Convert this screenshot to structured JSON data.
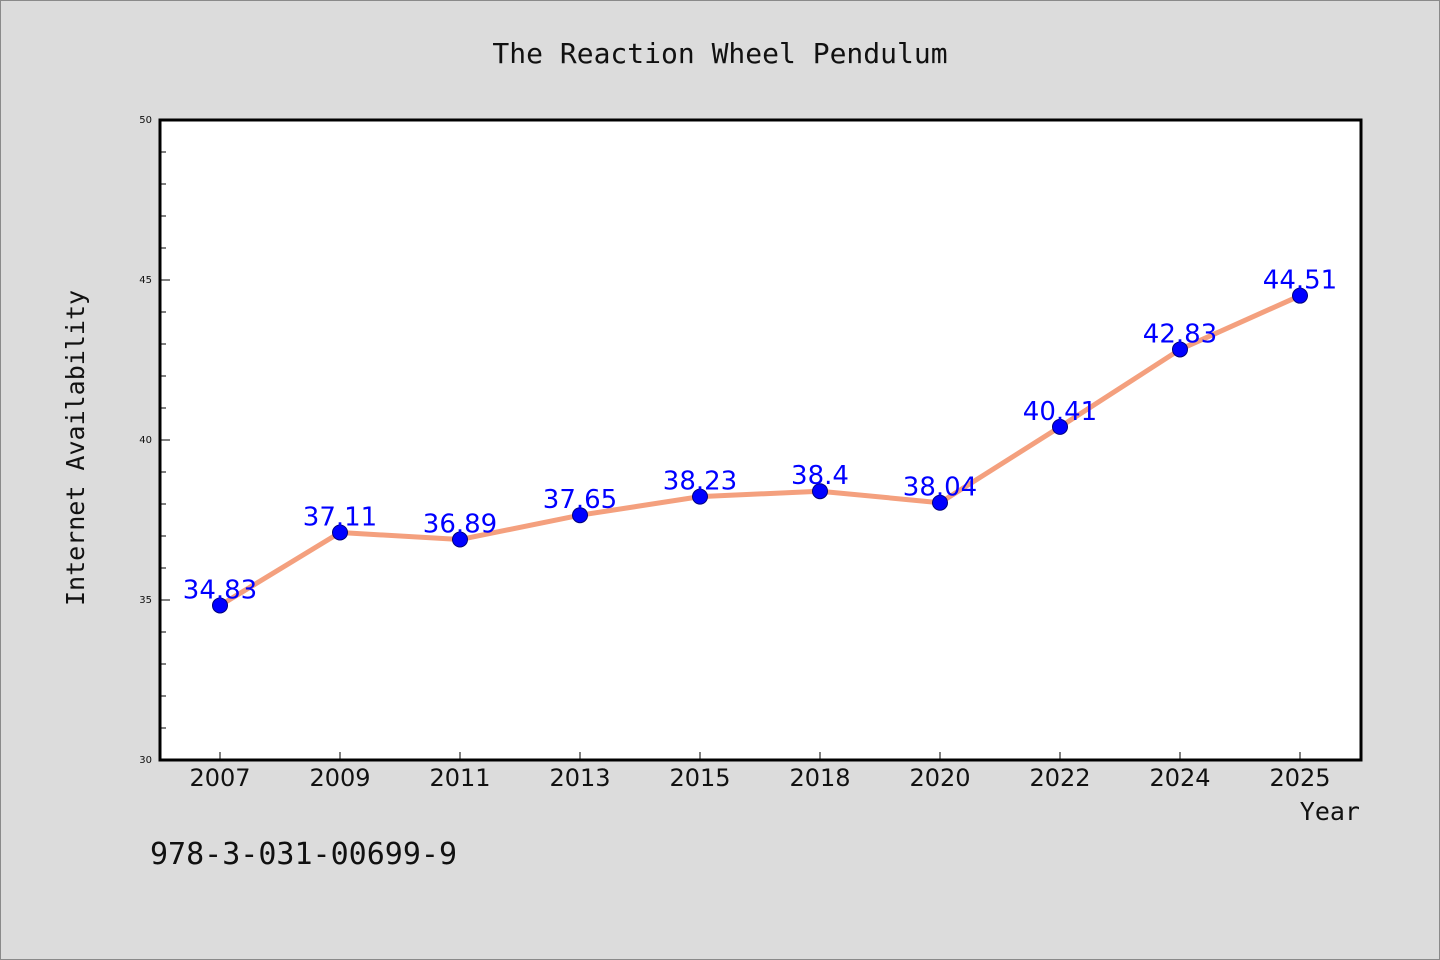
{
  "chart_data": {
    "type": "line",
    "title": "The Reaction Wheel Pendulum",
    "xlabel": "Year",
    "ylabel": "Internet Availability",
    "categories": [
      "2007",
      "2009",
      "2011",
      "2013",
      "2015",
      "2018",
      "2020",
      "2022",
      "2024",
      "2025"
    ],
    "series": [
      {
        "values": [
          34.83,
          37.11,
          36.89,
          37.65,
          38.23,
          38.4,
          38.04,
          40.41,
          42.83,
          44.51
        ],
        "data_labels": [
          "34.83",
          "37.11",
          "36.89",
          "37.65",
          "38.23",
          "38.4",
          "38.04",
          "40.41",
          "42.83",
          "44.51"
        ]
      }
    ],
    "ylim": [
      30,
      50
    ],
    "yticks": [
      "30",
      "35",
      "40",
      "45",
      "50"
    ],
    "grid": false,
    "colors": {
      "line": "#f4a07e",
      "marker": "#0000ff",
      "data_label": "#0000ff",
      "plot_background": "#ffffff",
      "figure_background": "#dcdcdc"
    }
  },
  "footer_text": "978-3-031-00699-9"
}
